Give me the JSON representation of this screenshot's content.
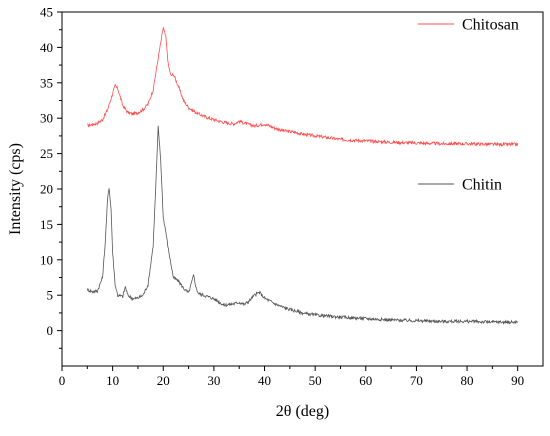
{
  "chart_data": {
    "type": "line",
    "xlabel": "2θ (deg)",
    "ylabel": "Intensity (cps)",
    "xlim": [
      0,
      95
    ],
    "ylim": [
      -5,
      45
    ],
    "xticks": [
      0,
      10,
      20,
      30,
      40,
      50,
      60,
      70,
      80,
      90
    ],
    "yticks": [
      0,
      5,
      10,
      15,
      20,
      25,
      30,
      35,
      40,
      45
    ],
    "grid": false,
    "legend_placement": "inline-labels",
    "series": [
      {
        "name": "Chitosan",
        "color": "#ff4d4d",
        "points": [
          [
            5,
            29.0
          ],
          [
            6,
            29.1
          ],
          [
            7,
            29.3
          ],
          [
            8,
            29.8
          ],
          [
            9,
            31.2
          ],
          [
            10,
            33.5
          ],
          [
            10.5,
            34.6
          ],
          [
            11,
            34.2
          ],
          [
            12,
            31.8
          ],
          [
            13,
            30.8
          ],
          [
            14,
            30.6
          ],
          [
            15,
            30.8
          ],
          [
            16,
            31.2
          ],
          [
            17,
            32.0
          ],
          [
            18,
            34.0
          ],
          [
            19,
            38.5
          ],
          [
            20,
            42.8
          ],
          [
            20.5,
            41.5
          ],
          [
            21,
            37.5
          ],
          [
            21.5,
            36.0
          ],
          [
            22,
            36.2
          ],
          [
            23,
            34.5
          ],
          [
            24,
            32.5
          ],
          [
            25,
            31.5
          ],
          [
            26,
            31.0
          ],
          [
            27,
            30.6
          ],
          [
            28,
            30.3
          ],
          [
            29,
            30.0
          ],
          [
            30,
            29.8
          ],
          [
            32,
            29.4
          ],
          [
            34,
            29.2
          ],
          [
            35,
            29.6
          ],
          [
            36,
            29.3
          ],
          [
            38,
            28.9
          ],
          [
            40,
            29.2
          ],
          [
            42,
            28.6
          ],
          [
            44,
            28.2
          ],
          [
            46,
            28.0
          ],
          [
            48,
            27.7
          ],
          [
            50,
            27.5
          ],
          [
            55,
            27.0
          ],
          [
            60,
            26.8
          ],
          [
            65,
            26.6
          ],
          [
            70,
            26.5
          ],
          [
            75,
            26.4
          ],
          [
            80,
            26.4
          ],
          [
            85,
            26.3
          ],
          [
            90,
            26.3
          ]
        ]
      },
      {
        "name": "Chitin",
        "color": "#555555",
        "points": [
          [
            5,
            5.8
          ],
          [
            6,
            5.5
          ],
          [
            7,
            5.6
          ],
          [
            8,
            7.5
          ],
          [
            8.5,
            12.0
          ],
          [
            9,
            18.5
          ],
          [
            9.3,
            20.3
          ],
          [
            9.7,
            17.0
          ],
          [
            10,
            11.0
          ],
          [
            10.5,
            6.5
          ],
          [
            11,
            5.0
          ],
          [
            12,
            4.8
          ],
          [
            12.5,
            6.2
          ],
          [
            13,
            5.0
          ],
          [
            14,
            4.5
          ],
          [
            15,
            4.6
          ],
          [
            16,
            5.0
          ],
          [
            17,
            6.5
          ],
          [
            18,
            12.0
          ],
          [
            18.5,
            20.0
          ],
          [
            19,
            28.8
          ],
          [
            19.5,
            24.0
          ],
          [
            20,
            16.0
          ],
          [
            20.5,
            14.0
          ],
          [
            21,
            11.5
          ],
          [
            22,
            7.5
          ],
          [
            23,
            7.0
          ],
          [
            24,
            6.0
          ],
          [
            25,
            5.3
          ],
          [
            26,
            7.8
          ],
          [
            26.5,
            6.0
          ],
          [
            27,
            5.2
          ],
          [
            28,
            5.0
          ],
          [
            30,
            4.5
          ],
          [
            32,
            3.6
          ],
          [
            34,
            3.8
          ],
          [
            35,
            4.0
          ],
          [
            36,
            3.7
          ],
          [
            37,
            4.2
          ],
          [
            38,
            5.0
          ],
          [
            39,
            5.4
          ],
          [
            40,
            4.6
          ],
          [
            42,
            3.8
          ],
          [
            44,
            3.2
          ],
          [
            46,
            2.8
          ],
          [
            48,
            2.4
          ],
          [
            50,
            2.2
          ],
          [
            55,
            1.9
          ],
          [
            60,
            1.7
          ],
          [
            65,
            1.5
          ],
          [
            70,
            1.4
          ],
          [
            75,
            1.3
          ],
          [
            80,
            1.3
          ],
          [
            85,
            1.2
          ],
          [
            90,
            1.2
          ]
        ]
      }
    ]
  }
}
